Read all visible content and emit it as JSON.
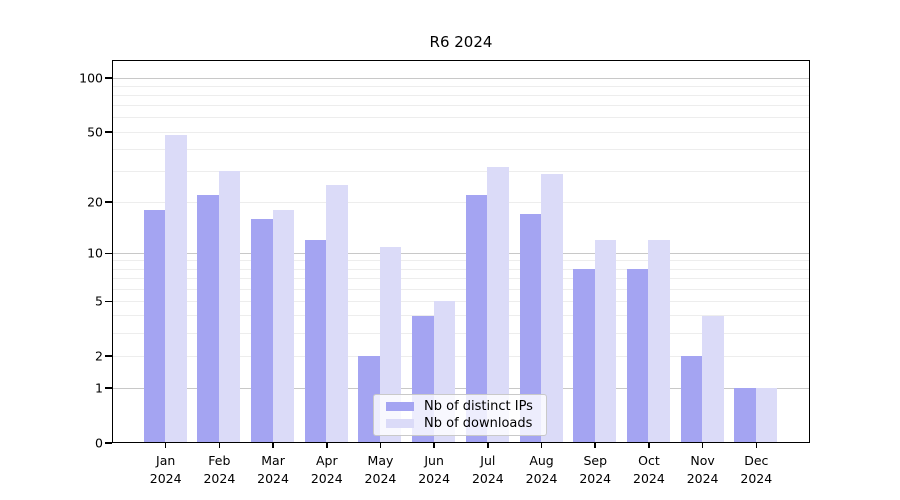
{
  "chart_data": {
    "type": "bar",
    "title": "R6 2024",
    "scale": "log10(1+x)",
    "categories": [
      "Jan",
      "Feb",
      "Mar",
      "Apr",
      "May",
      "Jun",
      "Jul",
      "Aug",
      "Sep",
      "Oct",
      "Nov",
      "Dec"
    ],
    "year": "2024",
    "series": [
      {
        "name": "Nb of distinct IPs",
        "color": "#a4a4f2",
        "values": [
          18,
          22,
          16,
          12,
          2,
          4,
          22,
          17,
          8,
          8,
          2,
          1
        ]
      },
      {
        "name": "Nb of downloads",
        "color": "#dbdbf8",
        "values": [
          48,
          30,
          18,
          25,
          11,
          5,
          32,
          29,
          12,
          12,
          4,
          1
        ]
      }
    ],
    "xlabel": "",
    "ylabel": "",
    "ylim": [
      0,
      126
    ],
    "y_ticks": [
      0,
      1,
      2,
      5,
      10,
      20,
      50,
      100
    ],
    "grid": {
      "on": true,
      "major_levels": [
        1,
        10,
        100
      ],
      "minor_levels": [
        2,
        3,
        4,
        5,
        6,
        7,
        8,
        9,
        20,
        30,
        40,
        50,
        60,
        70,
        80,
        90
      ],
      "major_color": "#c8c8c8",
      "minor_color": "#ededed"
    },
    "legend_position": "bottom-center-inside"
  },
  "colors": {
    "axis": "#000000",
    "background": "#ffffff",
    "text": "#000000"
  }
}
